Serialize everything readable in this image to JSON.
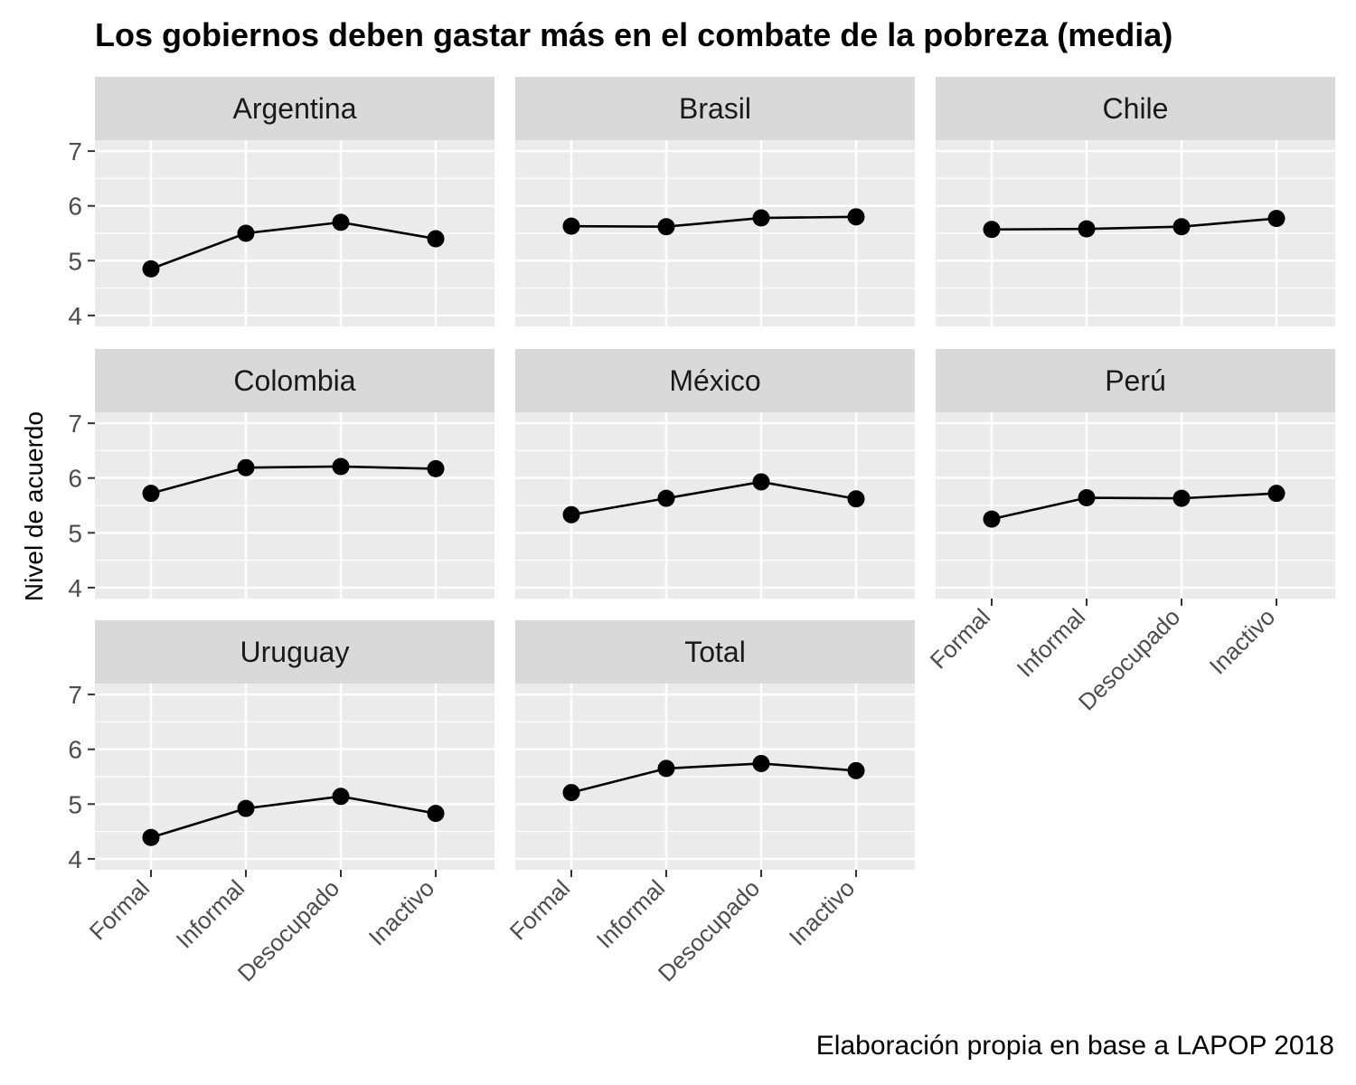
{
  "chart_data": {
    "type": "line",
    "title": "Los gobiernos deben gastar más en el combate de la pobreza (media)",
    "ylabel": "Nivel de acuerdo",
    "xlabel": "",
    "caption": "Elaboración propia en base a LAPOP 2018",
    "categories": [
      "Formal",
      "Informal",
      "Desocupado",
      "Inactivo"
    ],
    "yticks": [
      4,
      5,
      6,
      7
    ],
    "ylim": [
      3.8,
      7.2
    ],
    "grid": true,
    "layout": "facet-wrap 3 columns",
    "line_color": "#000000",
    "panel_background": "#EBEBEB",
    "strip_background": "#D9D9D9",
    "grid_color": "#FFFFFF",
    "panels": [
      {
        "name": "Argentina",
        "values": [
          4.85,
          5.5,
          5.7,
          5.4
        ]
      },
      {
        "name": "Brasil",
        "values": [
          5.63,
          5.62,
          5.78,
          5.8
        ]
      },
      {
        "name": "Chile",
        "values": [
          5.57,
          5.58,
          5.62,
          5.77
        ]
      },
      {
        "name": "Colombia",
        "values": [
          5.72,
          6.19,
          6.21,
          6.17
        ]
      },
      {
        "name": "México",
        "values": [
          5.33,
          5.63,
          5.93,
          5.62
        ]
      },
      {
        "name": "Perú",
        "values": [
          5.25,
          5.64,
          5.63,
          5.72
        ]
      },
      {
        "name": "Uruguay",
        "values": [
          4.39,
          4.92,
          5.14,
          4.83
        ]
      },
      {
        "name": "Total",
        "values": [
          5.21,
          5.65,
          5.74,
          5.61
        ]
      }
    ]
  }
}
